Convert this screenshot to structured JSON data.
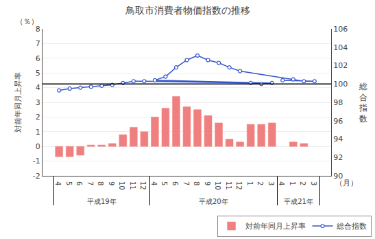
{
  "chart_data": {
    "type": "bar",
    "title": "鳥取市消費者物価指数の推移",
    "ylabel": "対前年同月上昇率",
    "y2label": "総合指数",
    "annotations": [
      {
        "text": "（％）"
      },
      {
        "text": "（月）"
      }
    ],
    "categories": [
      [
        "平成19年",
        "4"
      ],
      [
        "平成19年",
        "5"
      ],
      [
        "平成19年",
        "6"
      ],
      [
        "平成19年",
        "7"
      ],
      [
        "平成19年",
        "8"
      ],
      [
        "平成19年",
        "9"
      ],
      [
        "平成19年",
        "10"
      ],
      [
        "平成19年",
        "11"
      ],
      [
        "平成19年",
        "12"
      ],
      [
        "平成20年",
        "1"
      ],
      [
        "平成20年",
        "2"
      ],
      [
        "平成20年",
        "3"
      ],
      [
        "平成20年",
        "4"
      ],
      [
        "平成20年",
        "5"
      ],
      [
        "平成20年",
        "6"
      ],
      [
        "平成20年",
        "7"
      ],
      [
        "平成20年",
        "8"
      ],
      [
        "平成20年",
        "9"
      ],
      [
        "平成20年",
        "10"
      ],
      [
        "平成20年",
        "11"
      ],
      [
        "平成20年",
        "12"
      ],
      [
        "平成21年",
        "1"
      ],
      [
        "平成21年",
        "2"
      ],
      [
        "平成21年",
        "3"
      ],
      [
        "平成21年",
        "4"
      ]
    ],
    "series": [
      {
        "name": "対前年同月上昇率",
        "type": "bar",
        "color": "#F08080",
        "values": [
          -0.7,
          -0.7,
          -0.6,
          0.1,
          0.1,
          0.2,
          0.8,
          1.3,
          1.0,
          1.5,
          1.5,
          1.6,
          2.0,
          2.6,
          3.4,
          2.7,
          2.5,
          2.1,
          1.6,
          0.5,
          0.3,
          0.3,
          0.2,
          null,
          null
        ]
      },
      {
        "name": "総合指数",
        "type": "line",
        "axis": "y2",
        "color": "#3355CC",
        "marker": "circle",
        "values": [
          99.3,
          99.5,
          99.6,
          99.7,
          99.8,
          99.9,
          100.1,
          100.3,
          100.3,
          100.1,
          100.0,
          100.1,
          100.4,
          100.8,
          101.8,
          102.6,
          103.1,
          102.6,
          102.3,
          101.8,
          101.4,
          100.5,
          100.3,
          100.3,
          100.4
        ]
      }
    ],
    "reference_lines": [
      {
        "axis": "y2",
        "value": 100.0
      }
    ],
    "ylim": [
      -2,
      8
    ],
    "yticks": [
      -2,
      -1,
      0,
      1,
      2,
      3,
      4,
      5,
      6,
      7,
      8
    ],
    "y2lim": [
      90,
      106
    ],
    "y2ticks": [
      90,
      92,
      94,
      96,
      98,
      100,
      102,
      104,
      106
    ],
    "grid": true,
    "legend": "lower right"
  }
}
